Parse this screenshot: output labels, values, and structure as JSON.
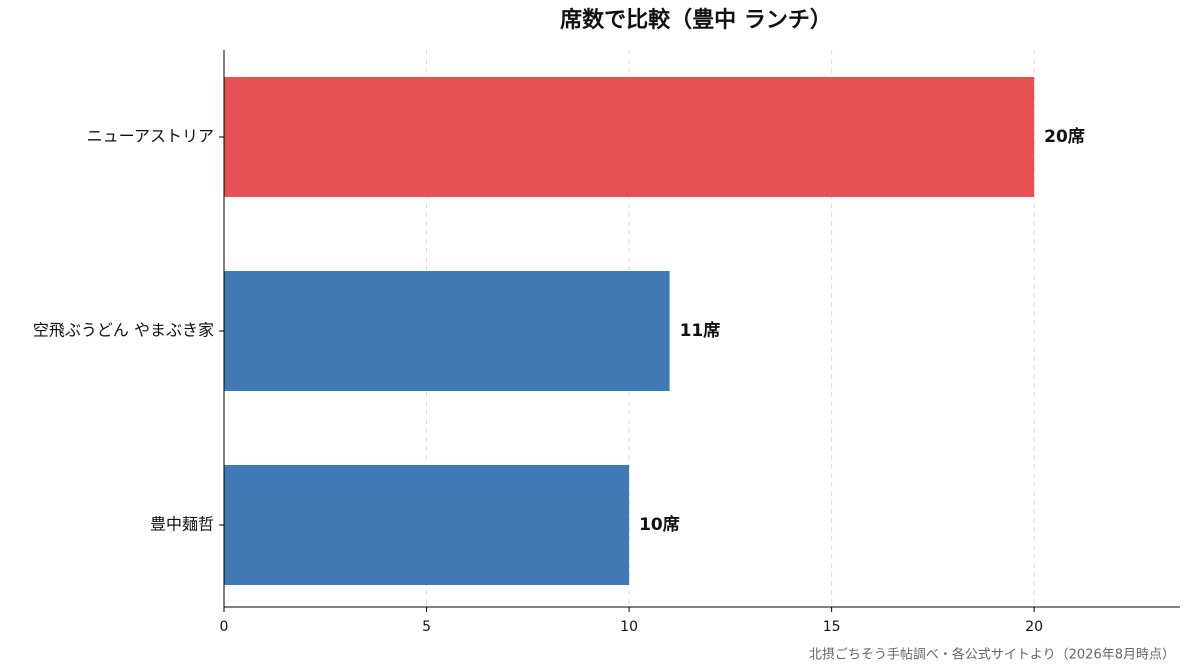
{
  "chart_data": {
    "type": "barh",
    "title": "席数で比較（豊中 ランチ）",
    "categories": [
      "ニューアストリア",
      "空飛ぶうどん やまぶき家",
      "豊中麺哲"
    ],
    "values": [
      20,
      11,
      10
    ],
    "value_labels": [
      "20席",
      "11席",
      "10席"
    ],
    "colors": [
      "#e65253",
      "#3f7ab6",
      "#3f7ab6"
    ],
    "xlim": [
      0,
      23.6
    ],
    "xticks": [
      0,
      5,
      10,
      15,
      20
    ],
    "grid": true,
    "footnote": "北摂ごちそう手帖調べ・各公式サイトより（2026年8月時点）"
  }
}
